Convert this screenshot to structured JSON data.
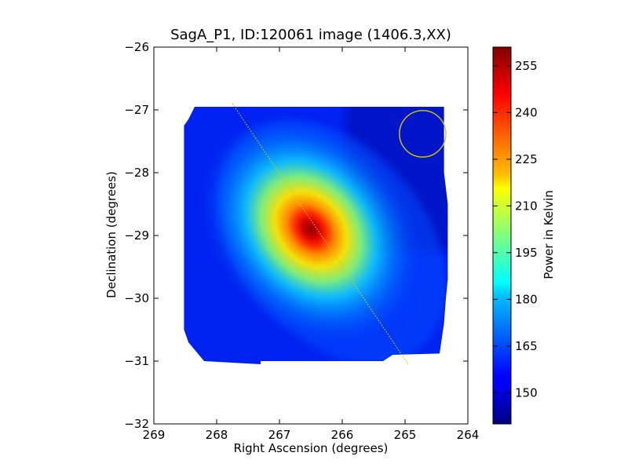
{
  "chart_data": {
    "type": "heatmap",
    "title": "SagA_P1, ID:120061 image (1406.3,XX)",
    "xlabel": "Right Ascension (degrees)",
    "ylabel": "Declination (degrees)",
    "xlim": [
      269,
      264
    ],
    "ylim": [
      -32,
      -26
    ],
    "x_ticks": [
      "269",
      "268",
      "267",
      "266",
      "265",
      "264"
    ],
    "y_ticks": [
      "−26",
      "−27",
      "−28",
      "−29",
      "−30",
      "−31",
      "−32"
    ],
    "colorbar": {
      "label": "Power in Kelvin",
      "range": [
        140,
        261
      ],
      "ticks": [
        "150",
        "165",
        "180",
        "195",
        "210",
        "225",
        "240",
        "255"
      ],
      "colormap": "jet"
    },
    "peak": {
      "ra": 266.5,
      "dec": -28.9,
      "value": 258
    },
    "background_level": 148,
    "mapped_region": [
      [
        268.35,
        -26.95
      ],
      [
        264.38,
        -26.95
      ],
      [
        264.38,
        -28.0
      ],
      [
        264.32,
        -28.5
      ],
      [
        264.32,
        -29.7
      ],
      [
        264.35,
        -30.0
      ],
      [
        264.38,
        -30.4
      ],
      [
        264.45,
        -30.88
      ],
      [
        265.2,
        -30.9
      ],
      [
        265.35,
        -31.0
      ],
      [
        267.3,
        -31.0
      ],
      [
        267.3,
        -31.05
      ],
      [
        268.2,
        -31.0
      ],
      [
        268.45,
        -30.7
      ],
      [
        268.52,
        -30.5
      ],
      [
        268.52,
        -27.25
      ],
      [
        268.45,
        -27.15
      ]
    ],
    "scan_line": {
      "start": [
        267.75,
        -26.9
      ],
      "end": [
        264.95,
        -31.05
      ],
      "color": "#d4c800"
    },
    "beam_circle": {
      "ra": 264.72,
      "dec": -27.38,
      "radius_deg": 0.37,
      "color": "#d4c800"
    }
  }
}
